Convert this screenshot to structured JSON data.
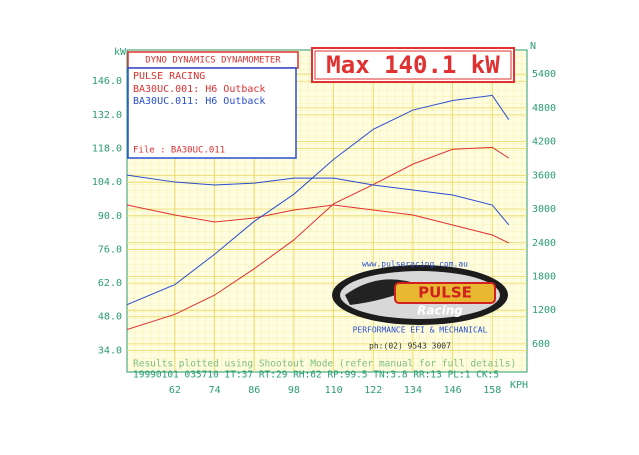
{
  "chart_data": {
    "type": "line",
    "header": "DYNO DYNAMICS DYNAMOMETER",
    "max_label": "Max 140.1 kW",
    "shop": "PULSE RACING",
    "file_label": "File     : BA30UC.011",
    "y_label": "kW",
    "y2_label": "N",
    "x_label": "KPH",
    "footer_note": "Results plotted using Shootout Mode (refer manual for full details)",
    "footer_conditions": "19990101 035710 IT:37 RT:29 RH:62 RP:99.5 TN:3.8 RR:13 PL:1 CK:5",
    "logo": {
      "url": "www.pulseracing.com.au",
      "word1": "PULSE",
      "word2": "Racing",
      "tagline": "PERFORMANCE EFI & MECHANICAL",
      "phone": "ph:(02) 9543 3007"
    },
    "x": [
      47.5,
      62,
      74,
      86,
      98,
      110,
      122,
      134,
      146,
      158,
      163
    ],
    "runs": [
      {
        "name": "BA30UC.001: H6 Outback",
        "color": "#e03030",
        "power": [
          42.7,
          49,
          57,
          68,
          80,
          95,
          103,
          111.5,
          117.7,
          118.5,
          114
        ],
        "force": [
          3071,
          2893,
          2769,
          2840,
          2982,
          3071,
          2982,
          2893,
          2716,
          2538,
          2396
        ]
      },
      {
        "name": "BA30UC.011: H6 Outback",
        "color": "#2a4ed0",
        "power": [
          53,
          61.4,
          74,
          87.7,
          99,
          113.5,
          126,
          134,
          138,
          140.1,
          130
        ],
        "force": [
          3604,
          3480,
          3427,
          3462,
          3550,
          3550,
          3427,
          3338,
          3249,
          3071,
          2716
        ]
      }
    ],
    "xlim": [
      47.5,
      168.5
    ],
    "ylim": [
      25,
      159
    ],
    "y2lim": [
      100,
      5830
    ],
    "xticks": [
      62,
      74,
      86,
      98,
      110,
      122,
      134,
      146,
      158
    ],
    "yticks": [
      {
        "value": 34,
        "label": "34.0"
      },
      {
        "value": 48,
        "label": "48.0"
      },
      {
        "value": 62,
        "label": "62.0"
      },
      {
        "value": 76,
        "label": "76.0"
      },
      {
        "value": 90,
        "label": "90.0"
      },
      {
        "value": 104,
        "label": "104.0"
      },
      {
        "value": 118,
        "label": "118.0"
      },
      {
        "value": 132,
        "label": "132.0"
      },
      {
        "value": 146,
        "label": "146.0"
      }
    ],
    "y2ticks": [
      600,
      1200,
      1800,
      2400,
      3000,
      3600,
      4200,
      4800,
      5400
    ],
    "grid": true
  }
}
